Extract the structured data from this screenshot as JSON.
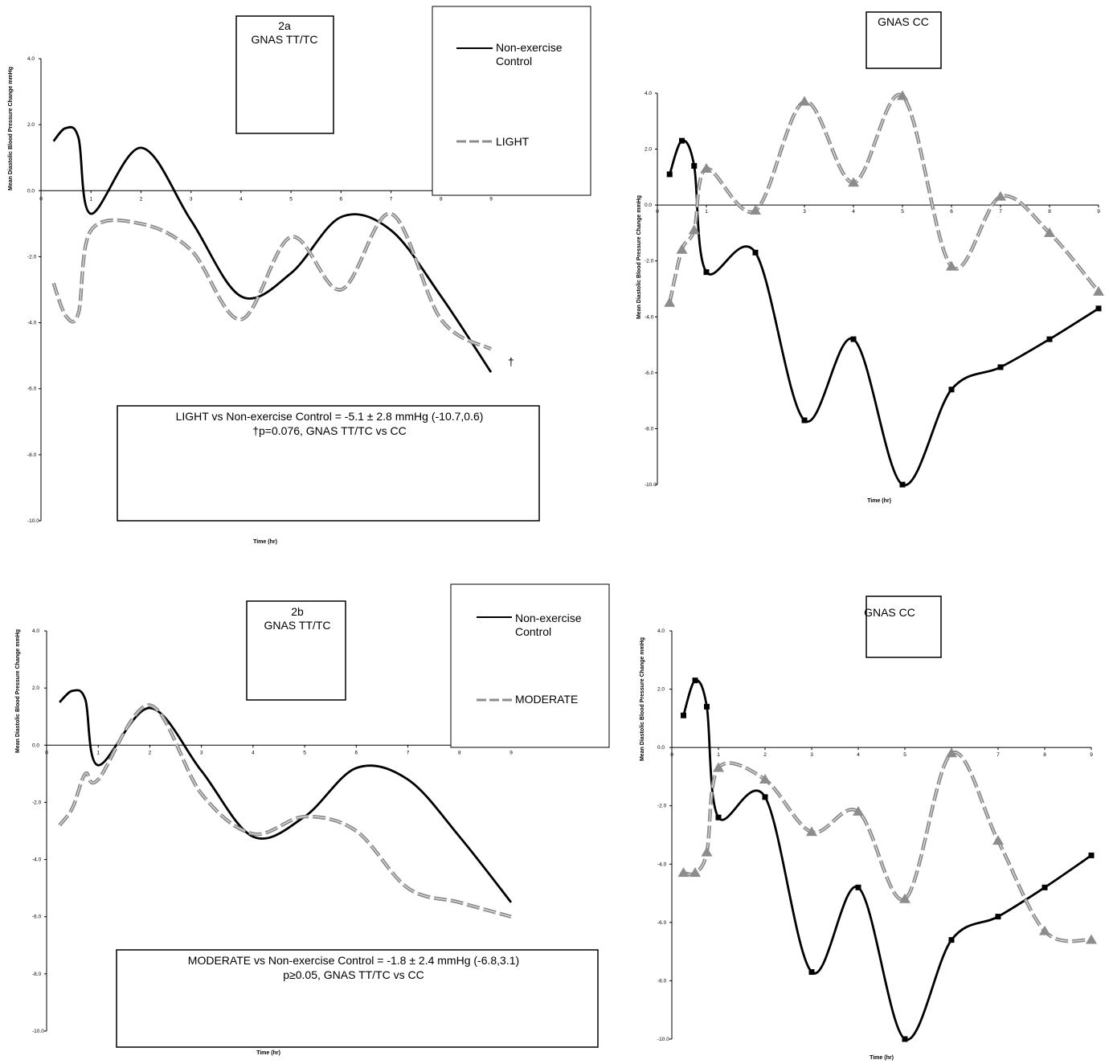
{
  "colors": {
    "control": "#000000",
    "exercise": "#8c8c8c"
  },
  "chart_data": [
    {
      "type": "line",
      "title_lines": [
        "2a",
        "GNAS TT/TC"
      ],
      "ylabel": "Mean Diastolic Blood Pressure Change mmHg",
      "xlabel": "Time (hr)",
      "ylim": [
        -10,
        4
      ],
      "xlim": [
        0,
        9
      ],
      "y_ticks": [
        "4.0",
        "2.0",
        "0.0",
        "-2.0",
        "-4.0",
        "-6.0",
        "-8.0",
        "-10.0"
      ],
      "x_ticks": [
        "0",
        "1",
        "2",
        "3",
        "4",
        "5",
        "6",
        "7",
        "8",
        "9"
      ],
      "legend": {
        "entries": [
          [
            "Non-exercise",
            "Control"
          ],
          [
            "LIGHT"
          ]
        ]
      },
      "annotation": [
        "LIGHT vs Non-exercise Control = -5.1 ± 2.8 mmHg (-10.7,0.6)",
        "†p=0.076, GNAS TT/TC vs CC"
      ],
      "end_mark": "†",
      "series": [
        {
          "name": "Non-exercise Control",
          "style": "control",
          "markers": false,
          "x": [
            0.25,
            0.5,
            0.75,
            1,
            2,
            3,
            4,
            5,
            6,
            7,
            8,
            9
          ],
          "y": [
            1.5,
            1.9,
            1.6,
            -0.7,
            1.3,
            -0.9,
            -3.2,
            -2.5,
            -0.8,
            -1.2,
            -3.2,
            -5.5
          ]
        },
        {
          "name": "LIGHT",
          "style": "exercise",
          "markers": false,
          "x": [
            0.25,
            0.5,
            0.75,
            1,
            2,
            3,
            4,
            5,
            6,
            7,
            8,
            9
          ],
          "y": [
            -2.8,
            -3.8,
            -3.7,
            -1.2,
            -1.0,
            -1.8,
            -3.9,
            -1.4,
            -3.0,
            -0.7,
            -3.9,
            -4.8
          ]
        }
      ]
    },
    {
      "type": "line",
      "title_lines": [
        "GNAS CC"
      ],
      "ylabel": "Mean Diastolic Blood Pressure Change mmHg",
      "xlabel": "Time (hr)",
      "ylim": [
        -10,
        4
      ],
      "xlim": [
        0,
        9
      ],
      "y_ticks": [
        "4.0",
        "2.0",
        "0.0",
        "-2.0",
        "-4.0",
        "-6.0",
        "-8.0",
        "-10.0"
      ],
      "x_ticks": [
        "0",
        "1",
        "2",
        "3",
        "4",
        "5",
        "6",
        "7",
        "8",
        "9"
      ],
      "series": [
        {
          "name": "Non-exercise Control",
          "style": "control",
          "markers": true,
          "x": [
            0.25,
            0.5,
            0.75,
            1,
            2,
            3,
            4,
            5,
            6,
            7,
            8,
            9
          ],
          "y": [
            1.1,
            2.3,
            1.4,
            -2.4,
            -1.7,
            -7.7,
            -4.8,
            -10.0,
            -6.6,
            -5.8,
            -4.8,
            -3.7
          ]
        },
        {
          "name": "LIGHT",
          "style": "exercise",
          "markers": true,
          "x": [
            0.25,
            0.5,
            0.75,
            1,
            2,
            3,
            4,
            5,
            6,
            7,
            8,
            9
          ],
          "y": [
            -3.5,
            -1.6,
            -0.9,
            1.3,
            -0.2,
            3.7,
            0.8,
            3.9,
            -2.2,
            0.3,
            -1.0,
            -3.1
          ]
        }
      ]
    },
    {
      "type": "line",
      "title_lines": [
        "2b",
        "GNAS TT/TC"
      ],
      "ylabel": "Mean Diastolic Blood Pressure Change mmHg",
      "xlabel": "Time (hr)",
      "ylim": [
        -10,
        4
      ],
      "xlim": [
        0,
        9
      ],
      "y_ticks": [
        "4.0",
        "2.0",
        "0.0",
        "-2.0",
        "-4.0",
        "-6.0",
        "-8.0",
        "-10.0"
      ],
      "x_ticks": [
        "0",
        "1",
        "2",
        "3",
        "4",
        "5",
        "6",
        "7",
        "8",
        "9"
      ],
      "legend": {
        "entries": [
          [
            "Non-exercise",
            "Control"
          ],
          [
            "MODERATE"
          ]
        ]
      },
      "annotation": [
        "MODERATE vs Non-exercise Control = -1.8 ± 2.4 mmHg (-6.8,3.1)",
        "p≥0.05, GNAS TT/TC vs CC"
      ],
      "series": [
        {
          "name": "Non-exercise Control",
          "style": "control",
          "markers": false,
          "x": [
            0.25,
            0.5,
            0.75,
            1,
            2,
            3,
            4,
            5,
            6,
            7,
            8,
            9
          ],
          "y": [
            1.5,
            1.9,
            1.6,
            -0.7,
            1.3,
            -0.9,
            -3.2,
            -2.5,
            -0.8,
            -1.2,
            -3.2,
            -5.5
          ]
        },
        {
          "name": "MODERATE",
          "style": "exercise",
          "markers": false,
          "x": [
            0.25,
            0.5,
            0.75,
            1,
            2,
            3,
            4,
            5,
            6,
            7,
            8,
            9
          ],
          "y": [
            -2.8,
            -2.2,
            -1.0,
            -1.2,
            1.4,
            -1.7,
            -3.1,
            -2.5,
            -3.0,
            -5.0,
            -5.5,
            -6.0
          ]
        }
      ]
    },
    {
      "type": "line",
      "title_lines": [
        "GNAS CC"
      ],
      "ylabel": "Mean Diastolic Blood Pressure Change mmHg",
      "xlabel": "Time (hr)",
      "ylim": [
        -10,
        4
      ],
      "xlim": [
        0,
        9
      ],
      "y_ticks": [
        "4.0",
        "2.0",
        "0.0",
        "-2.0",
        "-4.0",
        "-6.0",
        "-8.0",
        "-10.0"
      ],
      "x_ticks": [
        "0",
        "1",
        "2",
        "3",
        "4",
        "5",
        "6",
        "7",
        "8",
        "9"
      ],
      "series": [
        {
          "name": "Non-exercise Control",
          "style": "control",
          "markers": true,
          "x": [
            0.25,
            0.5,
            0.75,
            1,
            2,
            3,
            4,
            5,
            6,
            7,
            8,
            9
          ],
          "y": [
            1.1,
            2.3,
            1.4,
            -2.4,
            -1.7,
            -7.7,
            -4.8,
            -10.0,
            -6.6,
            -5.8,
            -4.8,
            -3.7
          ]
        },
        {
          "name": "MODERATE",
          "style": "exercise",
          "markers": true,
          "x": [
            0.25,
            0.5,
            0.75,
            1,
            2,
            3,
            4,
            5,
            6,
            7,
            8,
            9
          ],
          "y": [
            -4.3,
            -4.3,
            -3.6,
            -0.7,
            -1.1,
            -2.9,
            -2.2,
            -5.2,
            -0.2,
            -3.2,
            -6.3,
            -6.6
          ]
        }
      ]
    }
  ]
}
